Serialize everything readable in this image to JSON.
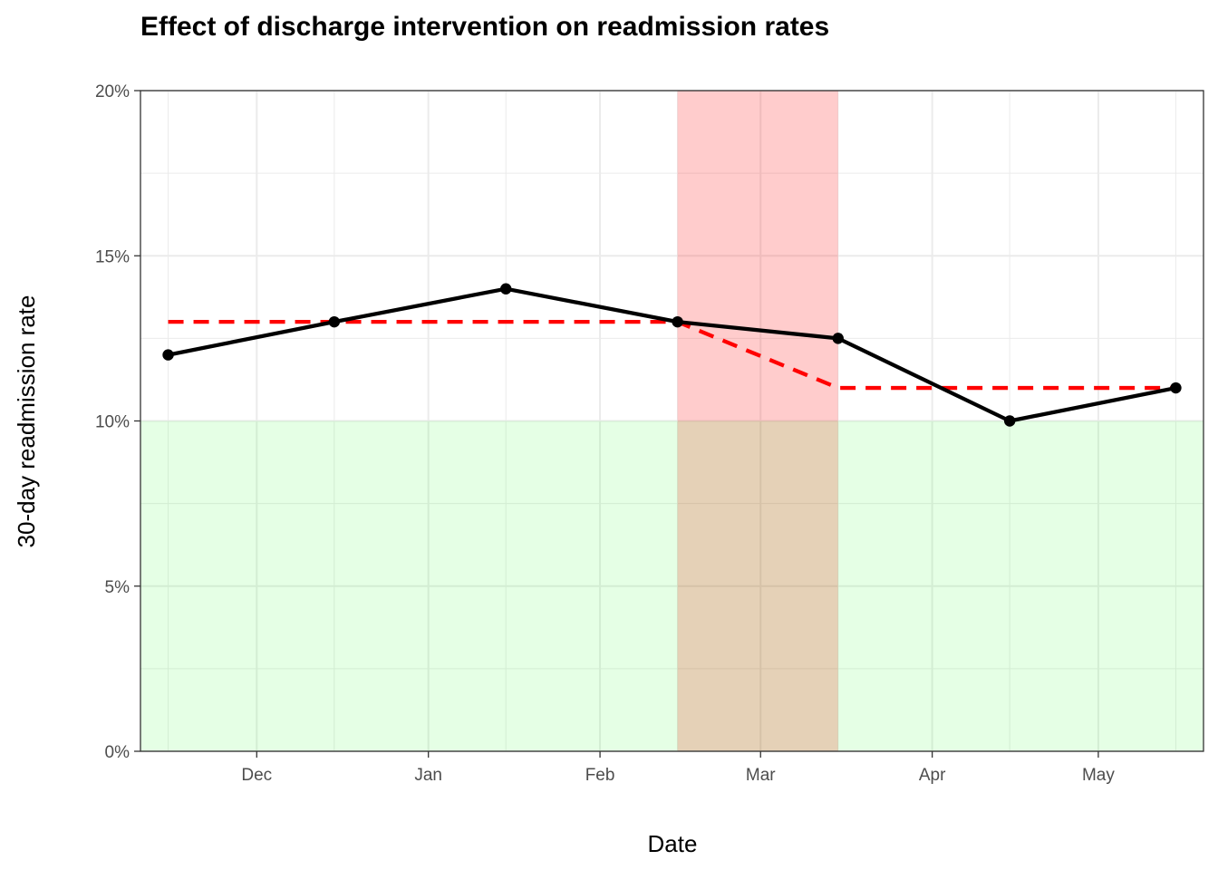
{
  "chart_data": {
    "type": "line",
    "title": "Effect of discharge intervention on readmission rates",
    "xlabel": "Date",
    "ylabel": "30-day readmission rate",
    "x_axis": {
      "type": "date",
      "range": [
        "2023-11-10",
        "2024-05-20"
      ],
      "ticks": [
        {
          "date": "2023-12-01",
          "label": "Dec"
        },
        {
          "date": "2024-01-01",
          "label": "Jan"
        },
        {
          "date": "2024-02-01",
          "label": "Feb"
        },
        {
          "date": "2024-03-01",
          "label": "Mar"
        },
        {
          "date": "2024-04-01",
          "label": "Apr"
        },
        {
          "date": "2024-05-01",
          "label": "May"
        }
      ],
      "minor_ticks": [
        "2023-11-15",
        "2023-12-15",
        "2024-01-15",
        "2024-02-15",
        "2024-03-15",
        "2024-04-15",
        "2024-05-15"
      ]
    },
    "y_axis": {
      "range": [
        0,
        20
      ],
      "unit": "%",
      "ticks": [
        {
          "value": 0,
          "label": "0%"
        },
        {
          "value": 5,
          "label": "5%"
        },
        {
          "value": 10,
          "label": "10%"
        },
        {
          "value": 15,
          "label": "15%"
        },
        {
          "value": 20,
          "label": "20%"
        }
      ],
      "minor_ticks": [
        2.5,
        7.5,
        12.5,
        17.5
      ]
    },
    "grid": true,
    "series": [
      {
        "style": "solid",
        "color": "#000000",
        "markers": true,
        "points": [
          {
            "x": "2023-11-15",
            "y": 12
          },
          {
            "x": "2023-12-15",
            "y": 13
          },
          {
            "x": "2024-01-15",
            "y": 14
          },
          {
            "x": "2024-02-15",
            "y": 13
          },
          {
            "x": "2024-03-15",
            "y": 12.5
          },
          {
            "x": "2024-04-15",
            "y": 10
          },
          {
            "x": "2024-05-15",
            "y": 11
          }
        ]
      },
      {
        "style": "dashed",
        "color": "#ff0000",
        "markers": false,
        "points": [
          {
            "x": "2023-11-15",
            "y": 13
          },
          {
            "x": "2024-02-15",
            "y": 13
          },
          {
            "x": "2024-03-15",
            "y": 11
          },
          {
            "x": "2024-05-15",
            "y": 11
          }
        ]
      }
    ],
    "shaded_regions": [
      {
        "axis": "x",
        "from": "2024-02-15",
        "to": "2024-03-15",
        "color": "#ff0000",
        "opacity": 0.2
      },
      {
        "axis": "y",
        "from": 0,
        "to": 10,
        "color": "#00ff00",
        "opacity": 0.1
      }
    ]
  }
}
